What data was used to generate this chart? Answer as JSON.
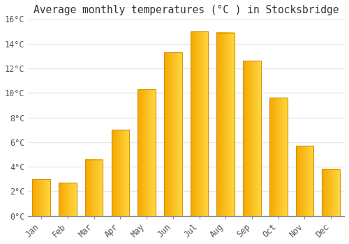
{
  "title": "Average monthly temperatures (°C ) in Stocksbridge",
  "months": [
    "Jan",
    "Feb",
    "Mar",
    "Apr",
    "May",
    "Jun",
    "Jul",
    "Aug",
    "Sep",
    "Oct",
    "Nov",
    "Dec"
  ],
  "values": [
    3.0,
    2.7,
    4.6,
    7.0,
    10.3,
    13.3,
    15.0,
    14.9,
    12.6,
    9.6,
    5.7,
    3.8
  ],
  "bar_color_left": "#F5A800",
  "bar_color_right": "#FFD740",
  "bar_edge_color": "#D4900A",
  "background_color": "#FFFFFF",
  "grid_color": "#E8E8E8",
  "ylim": [
    0,
    16
  ],
  "yticks": [
    0,
    2,
    4,
    6,
    8,
    10,
    12,
    14,
    16
  ],
  "ytick_labels": [
    "0°C",
    "2°C",
    "4°C",
    "6°C",
    "8°C",
    "10°C",
    "12°C",
    "14°C",
    "16°C"
  ],
  "title_fontsize": 10.5,
  "tick_fontsize": 8.5
}
